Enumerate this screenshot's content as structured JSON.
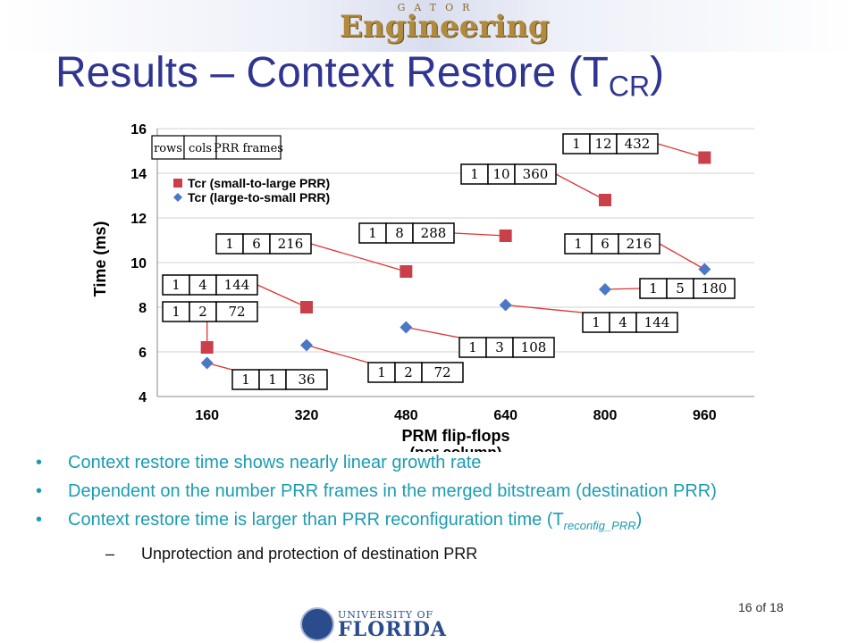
{
  "header": {
    "logo_small": "GATOR",
    "logo": "Engineering",
    "title_main": "Results – Context Restore (T",
    "title_sub": "CR",
    "title_close": ")"
  },
  "bullets": [
    {
      "text": "Context restore time shows nearly linear growth rate"
    },
    {
      "text": "Dependent on the number PRR frames in the merged bitstream (destination PRR)"
    },
    {
      "text": "Context restore time is larger than PRR reconfiguration time (T",
      "sub": "reconfig_PRR",
      "close": ")"
    }
  ],
  "sub_bullet": "Unprotection and protection of destination PRR",
  "footer": {
    "page": "16 of 18",
    "uni_small": "UNIVERSITY OF",
    "uni_big": "FLORIDA"
  },
  "colors": {
    "title": "#2f3590",
    "bullet": "#1b9cb2",
    "small_to_large": "#c9404a",
    "large_to_small": "#4a78c4"
  },
  "chart_data": {
    "type": "scatter",
    "xlabel": "PRM flip-flops",
    "xlabel2": "(per column)",
    "ylabel": "Time (ms)",
    "categories": [
      "160",
      "320",
      "480",
      "640",
      "800",
      "960"
    ],
    "x_ticks": [
      "160",
      "320",
      "480",
      "640",
      "800",
      "960"
    ],
    "y_ticks": [
      "4",
      "6",
      "8",
      "10",
      "12",
      "14",
      "16"
    ],
    "ylim": [
      4,
      16
    ],
    "grid": true,
    "legend_position": "top-left",
    "legend_header": [
      "rows",
      "cols",
      "PRR frames"
    ],
    "series": [
      {
        "name": "Tcr (small-to-large PRR)",
        "marker": "square",
        "values": [
          6.2,
          8.0,
          9.6,
          11.2,
          12.8,
          14.7
        ],
        "configs": [
          [
            "1",
            "2",
            "72"
          ],
          [
            "1",
            "4",
            "144"
          ],
          [
            "1",
            "6",
            "216"
          ],
          [
            "1",
            "8",
            "288"
          ],
          [
            "1",
            "10",
            "360"
          ],
          [
            "1",
            "12",
            "432"
          ]
        ]
      },
      {
        "name": "Tcr (large-to-small PRR)",
        "marker": "diamond",
        "values": [
          5.5,
          6.3,
          7.1,
          8.1,
          8.8,
          9.7
        ],
        "configs": [
          [
            "1",
            "1",
            "36"
          ],
          [
            "1",
            "2",
            "72"
          ],
          [
            "1",
            "3",
            "108"
          ],
          [
            "1",
            "4",
            "144"
          ],
          [
            "1",
            "5",
            "180"
          ],
          [
            "1",
            "6",
            "216"
          ]
        ]
      }
    ]
  }
}
